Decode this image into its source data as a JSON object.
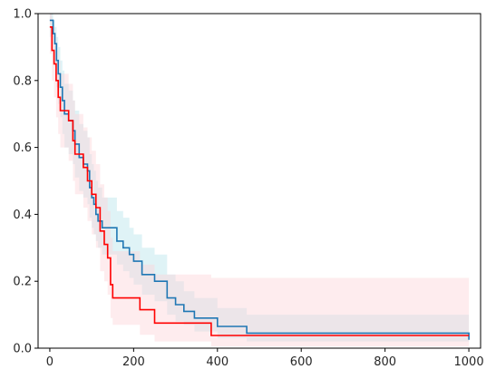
{
  "chart_data": {
    "type": "line",
    "title": "",
    "xlabel": "",
    "ylabel": "",
    "xlim": [
      -28,
      1028
    ],
    "ylim": [
      0,
      1
    ],
    "x_ticks": [
      0,
      200,
      400,
      600,
      800,
      1000
    ],
    "y_ticks": [
      0.0,
      0.2,
      0.4,
      0.6,
      0.8,
      1.0
    ],
    "x_tick_labels": [
      "0",
      "200",
      "400",
      "600",
      "800",
      "1000"
    ],
    "y_tick_labels": [
      "0.0",
      "0.2",
      "0.4",
      "0.6",
      "0.8",
      "1.0"
    ],
    "grid": false,
    "legend": "none",
    "series": [
      {
        "color": "#1f77b4",
        "band_color": "#b9e4ec",
        "step_x": [
          0,
          8,
          12,
          16,
          20,
          25,
          30,
          35,
          45,
          55,
          60,
          70,
          80,
          90,
          95,
          100,
          105,
          110,
          115,
          125,
          160,
          175,
          190,
          200,
          220,
          250,
          280,
          300,
          320,
          345,
          400,
          470,
          1000
        ],
        "step_y": [
          0.98,
          0.94,
          0.91,
          0.86,
          0.82,
          0.78,
          0.74,
          0.7,
          0.68,
          0.65,
          0.61,
          0.57,
          0.55,
          0.53,
          0.48,
          0.45,
          0.43,
          0.4,
          0.38,
          0.36,
          0.32,
          0.3,
          0.28,
          0.26,
          0.22,
          0.2,
          0.15,
          0.13,
          0.11,
          0.09,
          0.065,
          0.045,
          0.025
        ],
        "band_lower": [
          0.93,
          0.88,
          0.84,
          0.78,
          0.73,
          0.69,
          0.64,
          0.6,
          0.58,
          0.55,
          0.51,
          0.47,
          0.45,
          0.43,
          0.39,
          0.36,
          0.34,
          0.32,
          0.3,
          0.28,
          0.25,
          0.23,
          0.21,
          0.19,
          0.16,
          0.14,
          0.1,
          0.08,
          0.07,
          0.05,
          0.03,
          0.02,
          0.01
        ],
        "band_upper": [
          1.0,
          0.98,
          0.96,
          0.93,
          0.9,
          0.86,
          0.83,
          0.79,
          0.77,
          0.74,
          0.71,
          0.67,
          0.65,
          0.63,
          0.58,
          0.55,
          0.53,
          0.5,
          0.48,
          0.45,
          0.41,
          0.39,
          0.36,
          0.34,
          0.3,
          0.28,
          0.22,
          0.2,
          0.17,
          0.15,
          0.12,
          0.1,
          0.08
        ]
      },
      {
        "color": "#ff0000",
        "band_color": "#fcd4da",
        "step_x": [
          0,
          5,
          10,
          15,
          20,
          25,
          30,
          45,
          55,
          60,
          80,
          90,
          95,
          100,
          110,
          120,
          130,
          138,
          145,
          150,
          215,
          250,
          385,
          1000
        ],
        "step_y": [
          0.96,
          0.89,
          0.85,
          0.8,
          0.75,
          0.71,
          0.71,
          0.68,
          0.62,
          0.58,
          0.54,
          0.5,
          0.5,
          0.46,
          0.42,
          0.35,
          0.31,
          0.27,
          0.19,
          0.15,
          0.115,
          0.075,
          0.038,
          0.038
        ],
        "band_lower": [
          0.88,
          0.8,
          0.75,
          0.69,
          0.64,
          0.6,
          0.6,
          0.56,
          0.5,
          0.46,
          0.42,
          0.38,
          0.38,
          0.34,
          0.3,
          0.23,
          0.2,
          0.16,
          0.09,
          0.07,
          0.04,
          0.02,
          0.005,
          0.005
        ],
        "band_upper": [
          1.0,
          0.96,
          0.93,
          0.89,
          0.86,
          0.82,
          0.82,
          0.79,
          0.74,
          0.7,
          0.66,
          0.63,
          0.63,
          0.59,
          0.55,
          0.49,
          0.45,
          0.41,
          0.33,
          0.29,
          0.25,
          0.22,
          0.21,
          0.16
        ]
      }
    ]
  }
}
